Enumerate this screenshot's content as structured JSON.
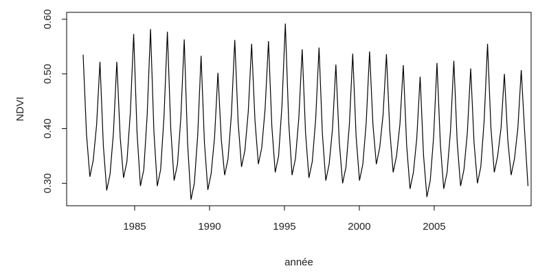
{
  "chart_data": {
    "type": "line",
    "xlabel": "année",
    "ylabel": "NDVI",
    "x": [
      1981.56,
      1981.785,
      1982.01,
      1982.235,
      1982.46,
      1982.685,
      1982.91,
      1983.135,
      1983.36,
      1983.585,
      1983.81,
      1984.035,
      1984.26,
      1984.485,
      1984.71,
      1984.935,
      1985.16,
      1985.385,
      1985.61,
      1985.835,
      1986.06,
      1986.285,
      1986.51,
      1986.735,
      1986.96,
      1987.185,
      1987.41,
      1987.635,
      1987.86,
      1988.085,
      1988.31,
      1988.535,
      1988.76,
      1988.985,
      1989.21,
      1989.435,
      1989.66,
      1989.885,
      1990.11,
      1990.335,
      1990.56,
      1990.785,
      1991.01,
      1991.235,
      1991.46,
      1991.685,
      1991.91,
      1992.135,
      1992.36,
      1992.585,
      1992.81,
      1993.035,
      1993.26,
      1993.485,
      1993.71,
      1993.935,
      1994.16,
      1994.385,
      1994.61,
      1994.835,
      1995.06,
      1995.285,
      1995.51,
      1995.735,
      1995.96,
      1996.185,
      1996.41,
      1996.635,
      1996.86,
      1997.085,
      1997.31,
      1997.535,
      1997.76,
      1997.985,
      1998.21,
      1998.435,
      1998.66,
      1998.885,
      1999.11,
      1999.335,
      1999.56,
      1999.785,
      2000.01,
      2000.235,
      2000.46,
      2000.685,
      2000.91,
      2001.135,
      2001.36,
      2001.585,
      2001.81,
      2002.035,
      2002.26,
      2002.485,
      2002.71,
      2002.935,
      2003.16,
      2003.385,
      2003.61,
      2003.835,
      2004.06,
      2004.285,
      2004.51,
      2004.735,
      2004.96,
      2005.185,
      2005.41,
      2005.635,
      2005.86,
      2006.085,
      2006.31,
      2006.535,
      2006.76,
      2006.985,
      2007.21,
      2007.435,
      2007.66,
      2007.885,
      2008.11,
      2008.335,
      2008.56,
      2008.785,
      2009.01,
      2009.235,
      2009.46,
      2009.685,
      2009.91,
      2010.135,
      2010.36,
      2010.585,
      2010.81,
      2011.035,
      2011.26
    ],
    "series": [
      {
        "color": "#000000",
        "values": [
          0.535,
          0.39,
          0.312,
          0.342,
          0.407,
          0.522,
          0.369,
          0.287,
          0.317,
          0.393,
          0.522,
          0.384,
          0.31,
          0.34,
          0.428,
          0.573,
          0.392,
          0.295,
          0.325,
          0.424,
          0.582,
          0.395,
          0.295,
          0.325,
          0.422,
          0.577,
          0.4,
          0.305,
          0.335,
          0.421,
          0.563,
          0.373,
          0.27,
          0.3,
          0.388,
          0.533,
          0.374,
          0.288,
          0.318,
          0.384,
          0.502,
          0.38,
          0.315,
          0.345,
          0.426,
          0.562,
          0.411,
          0.33,
          0.36,
          0.431,
          0.555,
          0.414,
          0.335,
          0.365,
          0.436,
          0.56,
          0.404,
          0.32,
          0.35,
          0.442,
          0.592,
          0.412,
          0.315,
          0.345,
          0.419,
          0.545,
          0.392,
          0.31,
          0.34,
          0.417,
          0.548,
          0.39,
          0.305,
          0.335,
          0.4,
          0.517,
          0.376,
          0.3,
          0.33,
          0.407,
          0.537,
          0.386,
          0.305,
          0.335,
          0.411,
          0.541,
          0.407,
          0.335,
          0.365,
          0.425,
          0.536,
          0.396,
          0.32,
          0.35,
          0.408,
          0.516,
          0.369,
          0.29,
          0.32,
          0.382,
          0.495,
          0.352,
          0.275,
          0.305,
          0.385,
          0.52,
          0.371,
          0.29,
          0.32,
          0.395,
          0.524,
          0.375,
          0.295,
          0.325,
          0.392,
          0.51,
          0.374,
          0.3,
          0.33,
          0.415,
          0.555,
          0.402,
          0.32,
          0.35,
          0.401,
          0.5,
          0.38,
          0.315,
          0.345,
          0.401,
          0.507,
          0.395,
          0.295
        ]
      }
    ],
    "xlim": [
      1980.46,
      2011.47
    ],
    "ylim": [
      0.259,
      0.6125
    ],
    "xticks": [
      1985,
      1990,
      1995,
      2000,
      2005
    ],
    "yticks": [
      {
        "value": 0.3,
        "label": "0.30"
      },
      {
        "value": 0.4,
        "label": "0.40"
      },
      {
        "value": 0.5,
        "label": "0.50"
      },
      {
        "value": 0.6,
        "label": "0.60"
      }
    ]
  }
}
